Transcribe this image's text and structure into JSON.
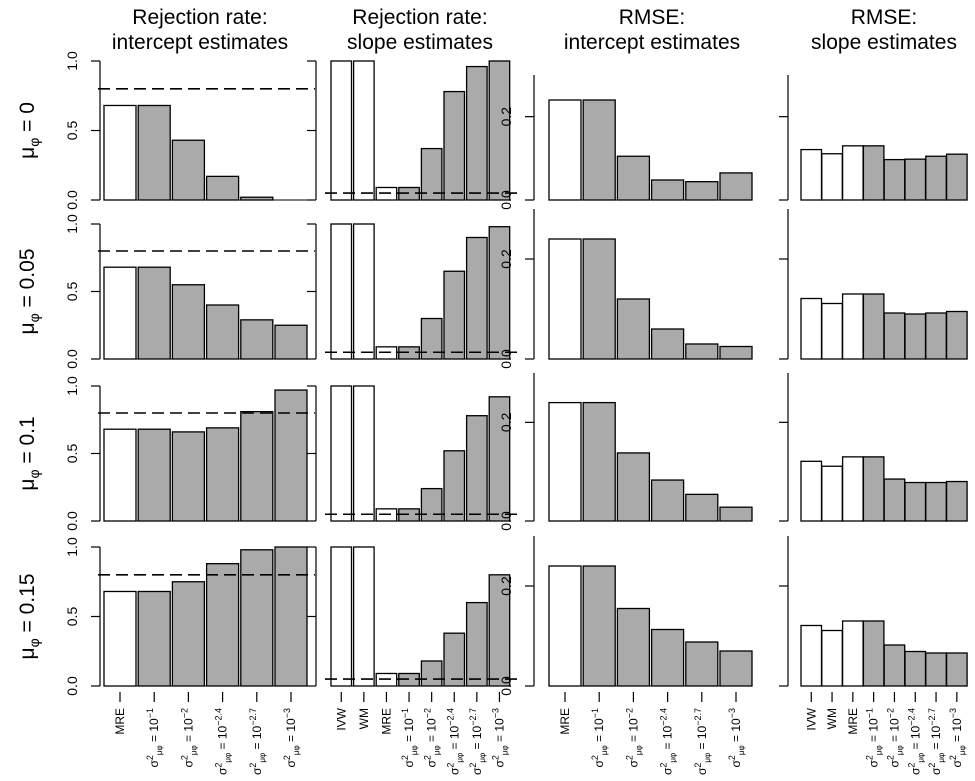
{
  "chart_data": {
    "type": "bar",
    "layout": "4x4 grid of bar panels",
    "column_titles": [
      [
        "Rejection rate:",
        "intercept estimates"
      ],
      [
        "Rejection rate:",
        "slope estimates"
      ],
      [
        "RMSE:",
        "intercept estimates"
      ],
      [
        "RMSE:",
        "slope estimates"
      ]
    ],
    "row_labels": [
      {
        "symbol": "μ",
        "sub": "φ",
        "rest": " = 0"
      },
      {
        "symbol": "μ",
        "sub": "φ",
        "rest": " = 0.05"
      },
      {
        "symbol": "μ",
        "sub": "φ",
        "rest": " = 0.1"
      },
      {
        "symbol": "μ",
        "sub": "φ",
        "rest": " = 0.15"
      }
    ],
    "category_sets": {
      "intercept": [
        {
          "main": "MRE"
        },
        {
          "main": "σ",
          "sup": "2",
          "sub": "μφ",
          "rest": " = 10",
          "exp": "−1"
        },
        {
          "main": "σ",
          "sup": "2",
          "sub": "μφ",
          "rest": " = 10",
          "exp": "−2"
        },
        {
          "main": "σ",
          "sup": "2",
          "sub": "μφ",
          "rest": " = 10",
          "exp": "−2.4"
        },
        {
          "main": "σ",
          "sup": "2",
          "sub": "μφ",
          "rest": " = 10",
          "exp": "−2.7"
        },
        {
          "main": "σ",
          "sup": "2",
          "sub": "μφ",
          "rest": " = 10",
          "exp": "−3"
        }
      ],
      "slope": [
        {
          "main": "IVW"
        },
        {
          "main": "WM"
        },
        {
          "main": "MRE"
        },
        {
          "main": "σ",
          "sup": "2",
          "sub": "μφ",
          "rest": " = 10",
          "exp": "−1"
        },
        {
          "main": "σ",
          "sup": "2",
          "sub": "μφ",
          "rest": " = 10",
          "exp": "−2"
        },
        {
          "main": "σ",
          "sup": "2",
          "sub": "μφ",
          "rest": " = 10",
          "exp": "−2.4"
        },
        {
          "main": "σ",
          "sup": "2",
          "sub": "μφ",
          "rest": " = 10",
          "exp": "−2.7"
        },
        {
          "main": "σ",
          "sup": "2",
          "sub": "μφ",
          "rest": " = 10",
          "exp": "−3"
        }
      ]
    },
    "bar_colors": {
      "white": "#ffffff",
      "gray": "#aaaaaa",
      "edge": "#000000"
    },
    "columns": [
      {
        "metric": "rejection_rate",
        "estimate": "intercept",
        "category_set": "intercept",
        "ylim": [
          0,
          1
        ],
        "ticks": [
          0.0,
          0.5,
          1.0
        ],
        "tick_labels": [
          "0.0",
          "0.5",
          "1.0"
        ],
        "reference_line": 0.8,
        "white_bars": 1,
        "show_category_labels": true,
        "rows": [
          [
            0.68,
            0.68,
            0.43,
            0.17,
            0.02,
            0.0
          ],
          [
            0.68,
            0.68,
            0.55,
            0.4,
            0.29,
            0.25
          ],
          [
            0.68,
            0.68,
            0.66,
            0.69,
            0.81,
            0.97
          ],
          [
            0.68,
            0.68,
            0.75,
            0.88,
            0.98,
            1.0
          ]
        ]
      },
      {
        "metric": "rejection_rate",
        "estimate": "slope",
        "category_set": "slope",
        "ylim": [
          0,
          1
        ],
        "ticks": [
          0.0,
          0.5,
          1.0
        ],
        "tick_labels": [
          "",
          "",
          ""
        ],
        "reference_line": 0.05,
        "white_bars": 3,
        "show_category_labels": true,
        "rows": [
          [
            1.0,
            1.0,
            0.09,
            0.09,
            0.37,
            0.78,
            0.96,
            1.0
          ],
          [
            1.0,
            1.0,
            0.09,
            0.09,
            0.3,
            0.65,
            0.9,
            0.98
          ],
          [
            1.0,
            1.0,
            0.09,
            0.09,
            0.24,
            0.52,
            0.78,
            0.92
          ],
          [
            1.0,
            1.0,
            0.09,
            0.09,
            0.18,
            0.38,
            0.6,
            0.8
          ]
        ]
      },
      {
        "metric": "rmse",
        "estimate": "intercept",
        "category_set": "intercept",
        "ylim": [
          0,
          0.3
        ],
        "ticks": [
          0.0,
          0.2
        ],
        "tick_labels": [
          "0.0",
          "0.2"
        ],
        "reference_line": null,
        "white_bars": 1,
        "show_category_labels": true,
        "rows": [
          [
            0.24,
            0.24,
            0.105,
            0.048,
            0.044,
            0.065
          ],
          [
            0.24,
            0.24,
            0.12,
            0.06,
            0.03,
            0.025
          ],
          [
            0.24,
            0.24,
            0.138,
            0.083,
            0.054,
            0.028
          ],
          [
            0.24,
            0.24,
            0.155,
            0.113,
            0.088,
            0.07
          ]
        ]
      },
      {
        "metric": "rmse",
        "estimate": "slope",
        "category_set": "slope",
        "ylim": [
          0,
          0.3
        ],
        "ticks": [
          0.0,
          0.2
        ],
        "tick_labels": [
          "",
          ""
        ],
        "reference_line": null,
        "white_bars": 3,
        "show_category_labels": true,
        "rows": [
          [
            0.121,
            0.111,
            0.13,
            0.13,
            0.097,
            0.098,
            0.105,
            0.11
          ],
          [
            0.121,
            0.111,
            0.13,
            0.13,
            0.092,
            0.09,
            0.092,
            0.095
          ],
          [
            0.121,
            0.111,
            0.13,
            0.13,
            0.085,
            0.078,
            0.078,
            0.08
          ],
          [
            0.121,
            0.111,
            0.13,
            0.13,
            0.082,
            0.069,
            0.066,
            0.066
          ]
        ]
      }
    ]
  }
}
